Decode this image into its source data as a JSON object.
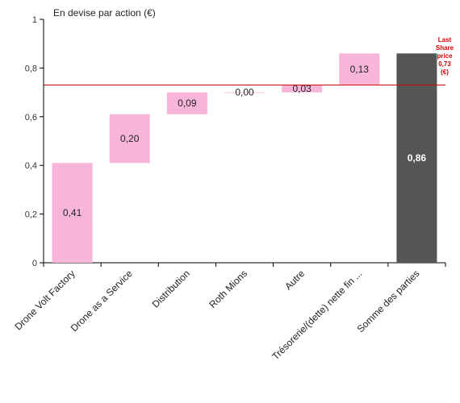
{
  "chart_data": {
    "type": "bar",
    "subtype": "waterfall",
    "ylabel": "En devise par action (€)",
    "ylim": [
      0,
      1
    ],
    "yticks": [
      0,
      0.2,
      0.4,
      0.6,
      0.8,
      1
    ],
    "ytick_labels": [
      "0",
      "0,2",
      "0,4",
      "0,6",
      "0,8",
      "1"
    ],
    "grid": false,
    "categories": [
      "Drone Volt Factory",
      "Drone as a Service",
      "Distribution",
      "Roth Mions",
      "Autre",
      "Trésorerie/(dette) nette fin ...",
      "Somme des parties"
    ],
    "values": [
      0.41,
      0.2,
      0.09,
      0.0,
      0.03,
      0.13,
      0.86
    ],
    "value_labels": [
      "0,41",
      "0,20",
      "0,09",
      "0,00",
      "0,03",
      "0,13",
      "0,86"
    ],
    "is_total": [
      false,
      false,
      false,
      false,
      false,
      false,
      true
    ],
    "colors": {
      "step": "#f7b6d9",
      "total": "#555555",
      "reference": "#cc0000"
    },
    "reference_line": {
      "value": 0.73,
      "label_lines": [
        "Last",
        "Share",
        "price",
        "0,73",
        "(€)"
      ]
    }
  }
}
